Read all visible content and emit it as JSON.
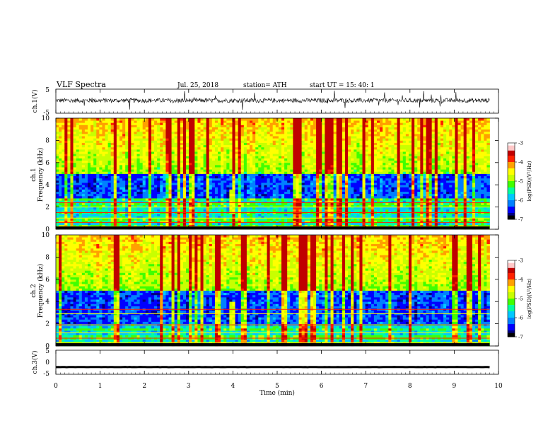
{
  "header": {
    "title": "VLF  Spectra",
    "date": "Jul.  25, 2018",
    "station": "station= ATH",
    "start": "start  UT  =    15: 40: 1"
  },
  "colors": {
    "colormap": [
      "#000000",
      "#000080",
      "#0000ff",
      "#0080ff",
      "#00c8ff",
      "#00ffa0",
      "#40ff00",
      "#c8ff00",
      "#ffff00",
      "#ffa000",
      "#ff2000",
      "#c00000",
      "#ffc8c8",
      "#ffffff"
    ]
  },
  "chart_data": [
    {
      "type": "line",
      "name": "ch1-waveform",
      "ylabel": "ch.1(V)",
      "ylim": [
        -5,
        5
      ],
      "yticks": [
        "5",
        "-5"
      ],
      "x_range_min": [
        0,
        9.8
      ],
      "baseline": 0.3,
      "noise_amplitude": 0.9,
      "spike_amplitude": 3.5
    },
    {
      "type": "heatmap",
      "name": "ch1-spectrogram",
      "ylabel": "Frequency  (kHz)",
      "ylabel_prefix": "ch.1",
      "ylim": [
        0,
        10
      ],
      "yticks": [
        "0",
        "2",
        "4",
        "6",
        "8",
        "10"
      ],
      "x_range_min": [
        0,
        9.8
      ],
      "colorbar": {
        "label": "log(PSD)(V²/Hz)",
        "range": [
          -7,
          -3
        ],
        "ticks": [
          "-3",
          "-4",
          "-5",
          "-6",
          "-7"
        ]
      },
      "features": {
        "burst_time_min": 4.0,
        "burst_freq_khz": [
          1.5,
          3.5
        ],
        "low_band_khz": [
          0,
          2.5
        ],
        "quiet_band_khz": [
          2.8,
          5.0
        ]
      }
    },
    {
      "type": "heatmap",
      "name": "ch2-spectrogram",
      "ylabel": "Frequency  (kHz)",
      "ylabel_prefix": "ch.2",
      "ylim": [
        0,
        10
      ],
      "yticks": [
        "0",
        "2",
        "4",
        "6",
        "8",
        "10"
      ],
      "x_range_min": [
        0,
        9.8
      ],
      "colorbar": {
        "label": "log(PSD)(V²/Hz)",
        "range": [
          -7,
          -3
        ],
        "ticks": [
          "-3",
          "-4",
          "-5",
          "-6",
          "-7"
        ]
      },
      "features": {
        "burst_time_min": 4.0,
        "burst_freq_khz": [
          1.5,
          4.0
        ],
        "low_band_khz": [
          0,
          2.0
        ],
        "quiet_band_khz": [
          2.0,
          5.0
        ]
      }
    },
    {
      "type": "line",
      "name": "ch3-waveform",
      "ylabel": "ch.3(V)",
      "ylim": [
        -5,
        5
      ],
      "yticks": [
        "5",
        "0",
        "-5"
      ],
      "x_range_min": [
        0,
        9.8
      ],
      "baseline": -2.0,
      "noise_amplitude": 0.1
    }
  ],
  "xaxis": {
    "label": "Time  (min)",
    "ticks": [
      "0",
      "1",
      "2",
      "3",
      "4",
      "5",
      "6",
      "7",
      "8",
      "9",
      "10"
    ],
    "xlim": [
      0,
      10
    ]
  }
}
